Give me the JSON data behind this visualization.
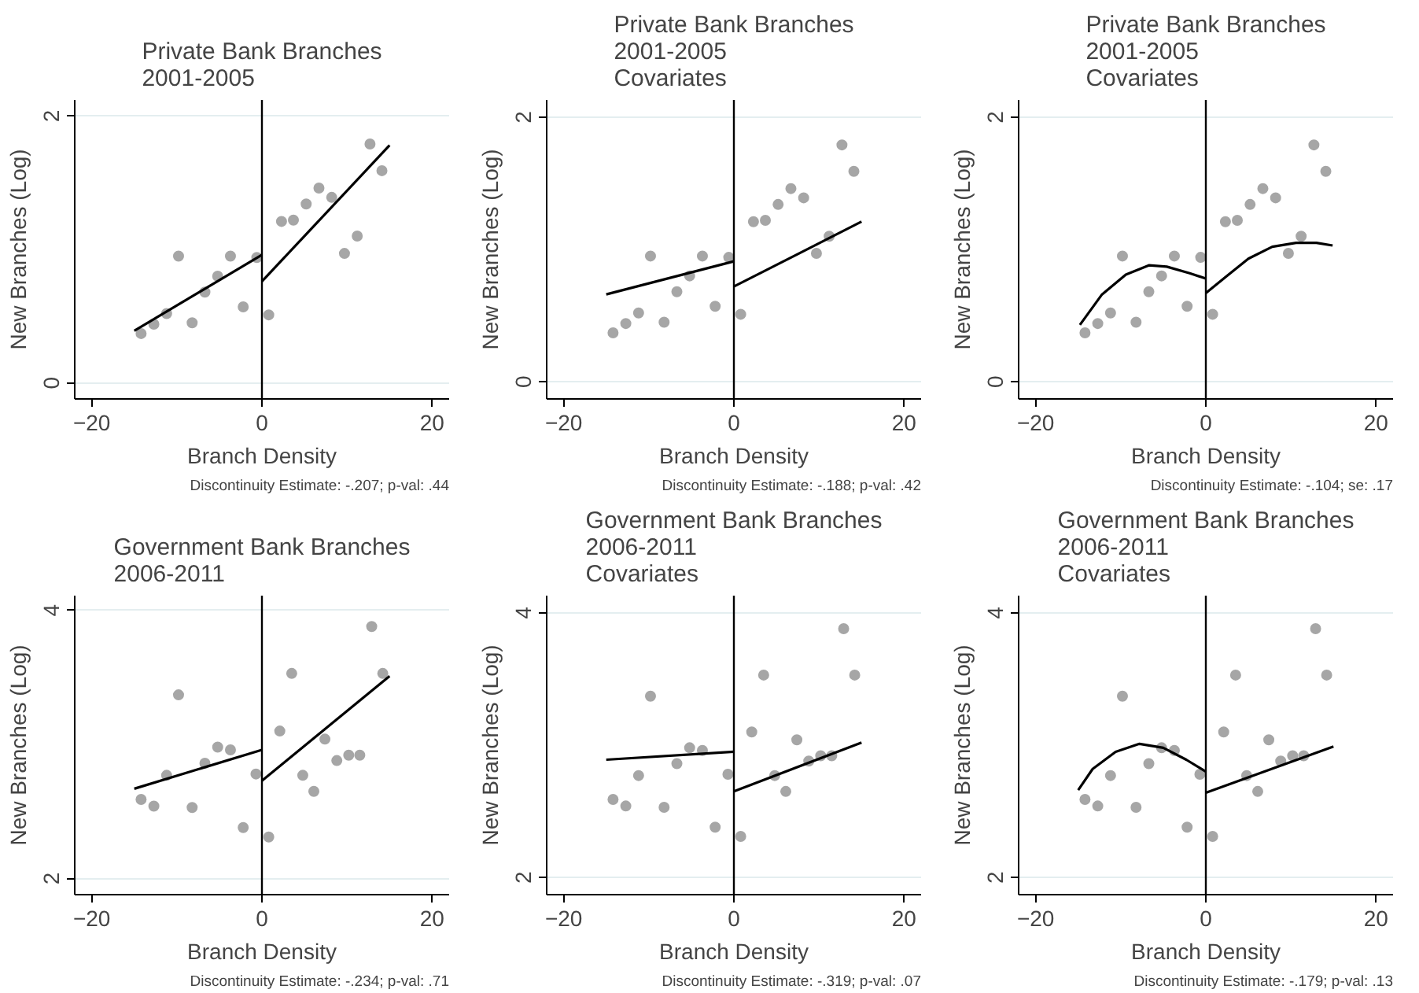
{
  "chart_data": [
    {
      "type": "scatter",
      "title": "Private Bank Branches\n2001-2005",
      "xlabel": "Branch Density",
      "ylabel": "New Branches (Log)",
      "annotations": [
        "Discontinuity Estimate: -.207; p-val: .44"
      ],
      "xlim": [
        -22,
        22
      ],
      "ylim": [
        -0.12,
        2.12
      ],
      "xticks": [
        -20,
        0,
        20
      ],
      "yticks": [
        0,
        2
      ],
      "grid": "y",
      "ref_lines": [
        {
          "axis": "x",
          "value": 0,
          "color": "#000000"
        }
      ],
      "x": [
        -14.2,
        -12.7,
        -11.2,
        -9.8,
        -8.2,
        -6.7,
        -5.2,
        -3.7,
        -2.2,
        -0.6,
        0.8,
        2.3,
        3.7,
        5.2,
        6.7,
        8.2,
        9.7,
        11.2,
        12.7,
        14.1
      ],
      "series": [
        {
          "color": "#a6a6a6",
          "marker": "circle",
          "values": [
            0.37,
            0.44,
            0.52,
            0.95,
            0.45,
            0.68,
            0.8,
            0.95,
            0.57,
            0.94,
            0.51,
            1.21,
            1.22,
            1.34,
            1.46,
            1.39,
            0.97,
            1.1,
            1.79,
            1.59
          ]
        },
        {
          "type": "line",
          "color": "#000000",
          "x": [
            -15,
            0
          ],
          "values": [
            0.39,
            0.96
          ]
        },
        {
          "type": "line",
          "color": "#000000",
          "x": [
            0,
            15
          ],
          "values": [
            0.76,
            1.78
          ]
        }
      ]
    },
    {
      "type": "scatter",
      "title": "Private Bank Branches\n2001-2005\nCovariates",
      "xlabel": "Branch Density",
      "ylabel": "New Branches (Log)",
      "annotations": [
        "Discontinuity Estimate: -.188; p-val: .42"
      ],
      "xlim": [
        -22,
        22
      ],
      "ylim": [
        -0.13,
        2.13
      ],
      "xticks": [
        -20,
        0,
        20
      ],
      "yticks": [
        0,
        2
      ],
      "grid": "y",
      "ref_lines": [
        {
          "axis": "x",
          "value": 0,
          "color": "#000000"
        }
      ],
      "x": [
        -14.2,
        -12.7,
        -11.2,
        -9.8,
        -8.2,
        -6.7,
        -5.2,
        -3.7,
        -2.2,
        -0.6,
        0.8,
        2.3,
        3.7,
        5.2,
        6.7,
        8.2,
        9.7,
        11.2,
        12.7,
        14.1
      ],
      "series": [
        {
          "color": "#a6a6a6",
          "marker": "circle",
          "values": [
            0.37,
            0.44,
            0.52,
            0.95,
            0.45,
            0.68,
            0.8,
            0.95,
            0.57,
            0.94,
            0.51,
            1.21,
            1.22,
            1.34,
            1.46,
            1.39,
            0.97,
            1.1,
            1.79,
            1.59
          ]
        },
        {
          "type": "line",
          "color": "#000000",
          "x": [
            -15,
            0
          ],
          "values": [
            0.66,
            0.91
          ]
        },
        {
          "type": "line",
          "color": "#000000",
          "x": [
            0,
            15
          ],
          "values": [
            0.72,
            1.21
          ]
        }
      ]
    },
    {
      "type": "scatter",
      "title": "Private Bank Branches\n2001-2005\nCovariates",
      "xlabel": "Branch Density",
      "ylabel": "New Branches (Log)",
      "annotations": [
        "Discontinuity Estimate: -.104; se: .17"
      ],
      "xlim": [
        -22,
        22
      ],
      "ylim": [
        -0.13,
        2.13
      ],
      "xticks": [
        -20,
        0,
        20
      ],
      "yticks": [
        0,
        2
      ],
      "grid": "y",
      "ref_lines": [
        {
          "axis": "x",
          "value": 0,
          "color": "#000000"
        }
      ],
      "x": [
        -14.2,
        -12.7,
        -11.2,
        -9.8,
        -8.2,
        -6.7,
        -5.2,
        -3.7,
        -2.2,
        -0.6,
        0.8,
        2.3,
        3.7,
        5.2,
        6.7,
        8.2,
        9.7,
        11.2,
        12.7,
        14.1
      ],
      "series": [
        {
          "color": "#a6a6a6",
          "marker": "circle",
          "values": [
            0.37,
            0.44,
            0.52,
            0.95,
            0.45,
            0.68,
            0.8,
            0.95,
            0.57,
            0.94,
            0.51,
            1.21,
            1.22,
            1.34,
            1.46,
            1.39,
            0.97,
            1.1,
            1.79,
            1.59
          ]
        },
        {
          "type": "line",
          "color": "#000000",
          "x": [
            -14.8,
            -12.2,
            -9.4,
            -6.7,
            -4.6,
            -1.9,
            0
          ],
          "values": [
            0.43,
            0.66,
            0.81,
            0.88,
            0.87,
            0.82,
            0.78
          ]
        },
        {
          "type": "line",
          "color": "#000000",
          "x": [
            0,
            2.3,
            5,
            7.8,
            10.6,
            13,
            14.9
          ],
          "values": [
            0.67,
            0.79,
            0.93,
            1.02,
            1.05,
            1.05,
            1.03
          ]
        }
      ]
    },
    {
      "type": "scatter",
      "title": "Government Bank Branches\n2006-2011",
      "xlabel": "Branch Density",
      "ylabel": "New Branches (Log)",
      "annotations": [
        "Discontinuity Estimate: -.234; p-val: .71"
      ],
      "xlim": [
        -22,
        22
      ],
      "ylim": [
        1.88,
        4.11
      ],
      "xticks": [
        -20,
        0,
        20
      ],
      "yticks": [
        2,
        4
      ],
      "grid": "y",
      "ref_lines": [
        {
          "axis": "x",
          "value": 0,
          "color": "#000000"
        }
      ],
      "x": [
        -14.2,
        -12.7,
        -11.2,
        -9.8,
        -8.2,
        -6.7,
        -5.2,
        -3.7,
        -2.2,
        -0.7,
        0.8,
        2.1,
        3.5,
        4.8,
        6.1,
        7.4,
        8.8,
        10.2,
        11.5,
        12.9,
        14.2
      ],
      "series": [
        {
          "color": "#a6a6a6",
          "marker": "circle",
          "values": [
            2.59,
            2.54,
            2.77,
            3.37,
            2.53,
            2.86,
            2.98,
            2.96,
            2.38,
            2.78,
            2.31,
            3.1,
            3.53,
            2.77,
            2.65,
            3.04,
            2.88,
            2.92,
            2.92,
            3.88,
            3.53
          ]
        },
        {
          "type": "line",
          "color": "#000000",
          "x": [
            -15,
            0
          ],
          "values": [
            2.67,
            2.96
          ]
        },
        {
          "type": "line",
          "color": "#000000",
          "x": [
            0,
            15
          ],
          "values": [
            2.73,
            3.51
          ]
        }
      ]
    },
    {
      "type": "scatter",
      "title": "Government Bank Branches\n2006-2011\nCovariates",
      "xlabel": "Branch Density",
      "ylabel": "New Branches (Log)",
      "annotations": [
        "Discontinuity Estimate: -.319; p-val: .07"
      ],
      "xlim": [
        -22,
        22
      ],
      "ylim": [
        1.87,
        4.13
      ],
      "xticks": [
        -20,
        0,
        20
      ],
      "yticks": [
        2,
        4
      ],
      "grid": "y",
      "ref_lines": [
        {
          "axis": "x",
          "value": 0,
          "color": "#000000"
        }
      ],
      "x": [
        -14.2,
        -12.7,
        -11.2,
        -9.8,
        -8.2,
        -6.7,
        -5.2,
        -3.7,
        -2.2,
        -0.7,
        0.8,
        2.1,
        3.5,
        4.8,
        6.1,
        7.4,
        8.8,
        10.2,
        11.5,
        12.9,
        14.2
      ],
      "series": [
        {
          "color": "#a6a6a6",
          "marker": "circle",
          "values": [
            2.59,
            2.54,
            2.77,
            3.37,
            2.53,
            2.86,
            2.98,
            2.96,
            2.38,
            2.78,
            2.31,
            3.1,
            3.53,
            2.77,
            2.65,
            3.04,
            2.88,
            2.92,
            2.92,
            3.88,
            3.53
          ]
        },
        {
          "type": "line",
          "color": "#000000",
          "x": [
            -15,
            0
          ],
          "values": [
            2.89,
            2.95
          ]
        },
        {
          "type": "line",
          "color": "#000000",
          "x": [
            0,
            15
          ],
          "values": [
            2.65,
            3.02
          ]
        }
      ]
    },
    {
      "type": "scatter",
      "title": "Government Bank Branches\n2006-2011\nCovariates",
      "xlabel": "Branch Density",
      "ylabel": "New Branches (Log)",
      "annotations": [
        "Discontinuity Estimate: -.179; p-val: .13"
      ],
      "xlim": [
        -22,
        22
      ],
      "ylim": [
        1.87,
        4.13
      ],
      "xticks": [
        -20,
        0,
        20
      ],
      "yticks": [
        2,
        4
      ],
      "grid": "y",
      "ref_lines": [
        {
          "axis": "x",
          "value": 0,
          "color": "#000000"
        }
      ],
      "x": [
        -14.2,
        -12.7,
        -11.2,
        -9.8,
        -8.2,
        -6.7,
        -5.2,
        -3.7,
        -2.2,
        -0.7,
        0.8,
        2.1,
        3.5,
        4.8,
        6.1,
        7.4,
        8.8,
        10.2,
        11.5,
        12.9,
        14.2
      ],
      "series": [
        {
          "color": "#a6a6a6",
          "marker": "circle",
          "values": [
            2.59,
            2.54,
            2.77,
            3.37,
            2.53,
            2.86,
            2.98,
            2.96,
            2.38,
            2.78,
            2.31,
            3.1,
            3.53,
            2.77,
            2.65,
            3.04,
            2.88,
            2.92,
            2.92,
            3.88,
            3.53
          ]
        },
        {
          "type": "line",
          "color": "#000000",
          "x": [
            -15,
            -13.3,
            -10.6,
            -7.8,
            -5,
            -2.3,
            0
          ],
          "values": [
            2.66,
            2.82,
            2.95,
            3.01,
            2.98,
            2.89,
            2.8
          ]
        },
        {
          "type": "line",
          "color": "#000000",
          "x": [
            0,
            15
          ],
          "values": [
            2.64,
            2.99
          ]
        }
      ]
    }
  ]
}
